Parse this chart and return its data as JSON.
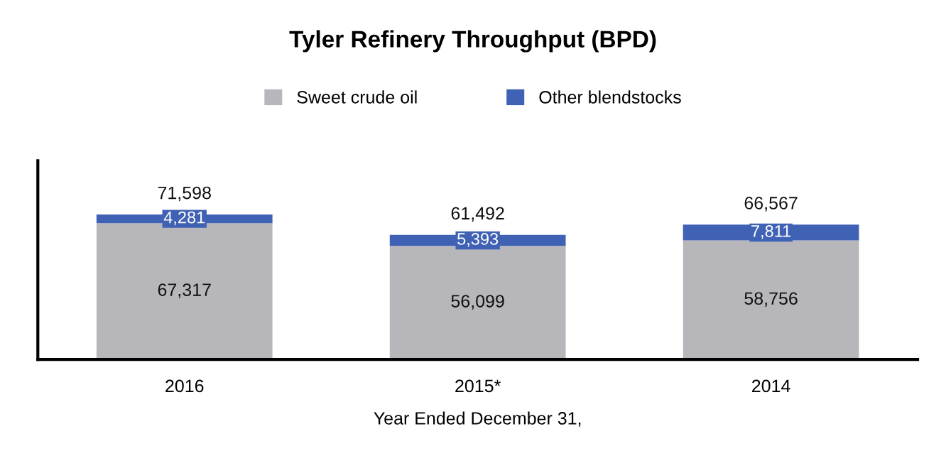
{
  "chart_data": {
    "type": "bar",
    "title": "Tyler Refinery Throughput (BPD)",
    "xlabel": "Year Ended December 31,",
    "categories": [
      "2016",
      "2015*",
      "2014"
    ],
    "stacked": true,
    "legend": "top",
    "tick_labels": "x",
    "grid": false,
    "series": [
      {
        "name": "Sweet crude oil",
        "color": "#b7b7bb",
        "values": [
          67317,
          56099,
          58756
        ],
        "value_labels": [
          "67,317",
          "56,099",
          "58,756"
        ]
      },
      {
        "name": "Other blendstocks",
        "color": "#4062b4",
        "values": [
          4281,
          5393,
          7811
        ],
        "value_labels": [
          "4,281",
          "5,393",
          "7,811"
        ]
      }
    ],
    "totals": [
      "71,598",
      "61,492",
      "66,567"
    ]
  }
}
